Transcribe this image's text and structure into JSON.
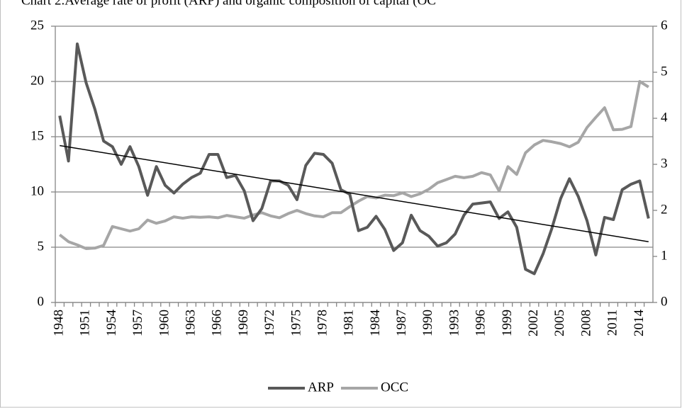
{
  "chart_data": {
    "type": "line",
    "title": "Chart 2.Average rate of profit (ARP) and organic composition of capital (OC",
    "categories": [
      "1948",
      null,
      null,
      "1951",
      null,
      null,
      "1954",
      null,
      null,
      "1957",
      null,
      null,
      "1960",
      null,
      null,
      "1963",
      null,
      null,
      "1966",
      null,
      null,
      "1969",
      null,
      null,
      "1972",
      null,
      null,
      "1975",
      null,
      null,
      "1978",
      null,
      null,
      "1981",
      null,
      null,
      "1984",
      null,
      null,
      "1987",
      null,
      null,
      "1990",
      null,
      null,
      "1993",
      null,
      null,
      "1996",
      null,
      null,
      "1999",
      null,
      null,
      "2002",
      null,
      null,
      "2005",
      null,
      null,
      "2008",
      null,
      null,
      "2011",
      null,
      null,
      "2014",
      null
    ],
    "series": [
      {
        "name": "ARP",
        "color": "#595959",
        "axis": "y",
        "values": [
          16.9,
          12.8,
          23.4,
          19.9,
          17.5,
          14.6,
          14.1,
          12.5,
          14.1,
          12.3,
          9.7,
          12.3,
          10.6,
          9.9,
          10.7,
          11.3,
          11.7,
          13.4,
          13.4,
          11.3,
          11.5,
          10.1,
          7.4,
          8.5,
          11.0,
          11.0,
          10.6,
          9.3,
          12.4,
          13.5,
          13.4,
          12.6,
          10.2,
          9.8,
          6.5,
          6.8,
          7.8,
          6.6,
          4.7,
          5.4,
          7.9,
          6.5,
          6.0,
          5.1,
          5.4,
          6.2,
          7.9,
          8.9,
          9.0,
          9.1,
          7.6,
          8.2,
          6.8,
          3.0,
          2.6,
          4.4,
          6.7,
          9.4,
          11.2,
          9.6,
          7.4,
          4.3,
          7.7,
          7.5,
          10.2,
          10.7,
          11.0,
          7.6
        ]
      },
      {
        "name": "OCC",
        "color": "#a6a6a6",
        "axis": "y2",
        "values": [
          1.47,
          1.32,
          1.25,
          1.17,
          1.18,
          1.24,
          1.65,
          1.6,
          1.55,
          1.6,
          1.79,
          1.72,
          1.77,
          1.86,
          1.83,
          1.86,
          1.85,
          1.86,
          1.84,
          1.89,
          1.86,
          1.83,
          1.9,
          1.95,
          1.88,
          1.84,
          1.93,
          2.0,
          1.93,
          1.88,
          1.86,
          1.95,
          1.95,
          2.08,
          2.2,
          2.3,
          2.27,
          2.33,
          2.32,
          2.38,
          2.3,
          2.36,
          2.46,
          2.6,
          2.67,
          2.74,
          2.71,
          2.74,
          2.82,
          2.77,
          2.42,
          2.95,
          2.78,
          3.25,
          3.42,
          3.52,
          3.49,
          3.45,
          3.38,
          3.48,
          3.8,
          4.02,
          4.23,
          3.75,
          3.76,
          3.82,
          4.8,
          4.68
        ]
      }
    ],
    "trendline": {
      "color": "#000000",
      "values": [
        14.2,
        5.5
      ]
    },
    "ylim": [
      0,
      25
    ],
    "yticks": [
      0,
      5,
      10,
      15,
      20,
      25
    ],
    "y2lim": [
      0,
      6
    ],
    "y2ticks": [
      0,
      1,
      2,
      3,
      4,
      5,
      6
    ],
    "grid": true,
    "legend": "bottom"
  }
}
